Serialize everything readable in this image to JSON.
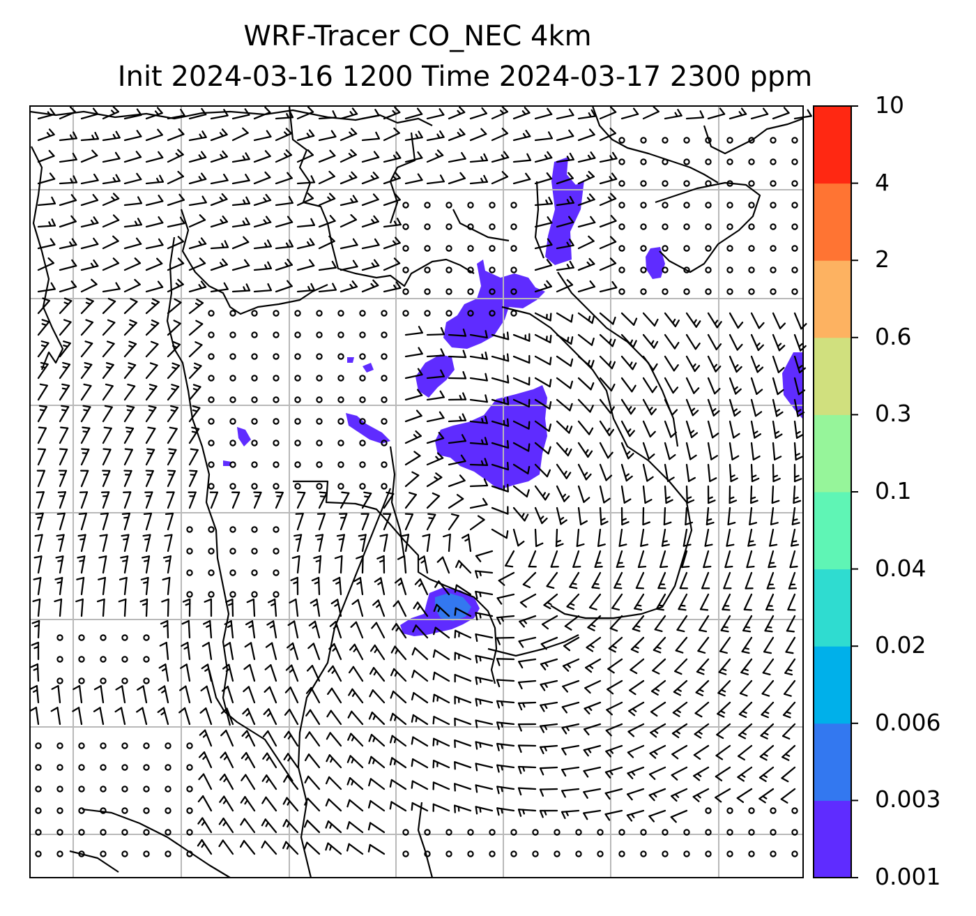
{
  "title_line1": "WRF-Tracer CO_NEC 4km",
  "title_line2": "Init 2024-03-16 1200 Time 2024-03-17 2300 ppm",
  "colorbar": {
    "levels": [
      "0.001",
      "0.003",
      "0.006",
      "0.02",
      "0.04",
      "0.1",
      "0.3",
      "0.6",
      "2",
      "4",
      "10"
    ],
    "colors": [
      "#5f2cff",
      "#3378f0",
      "#00b0ea",
      "#2fdcd0",
      "#5ff5b5",
      "#96f59a",
      "#d0e07e",
      "#fdb261",
      "#ff7433",
      "#ff2812"
    ]
  },
  "map": {
    "gridlines": true,
    "coastlines": true,
    "wind_barbs": true,
    "tracer_fill_color": "#5f2cff",
    "tracer_fill_color_2": "#3378f0"
  }
}
